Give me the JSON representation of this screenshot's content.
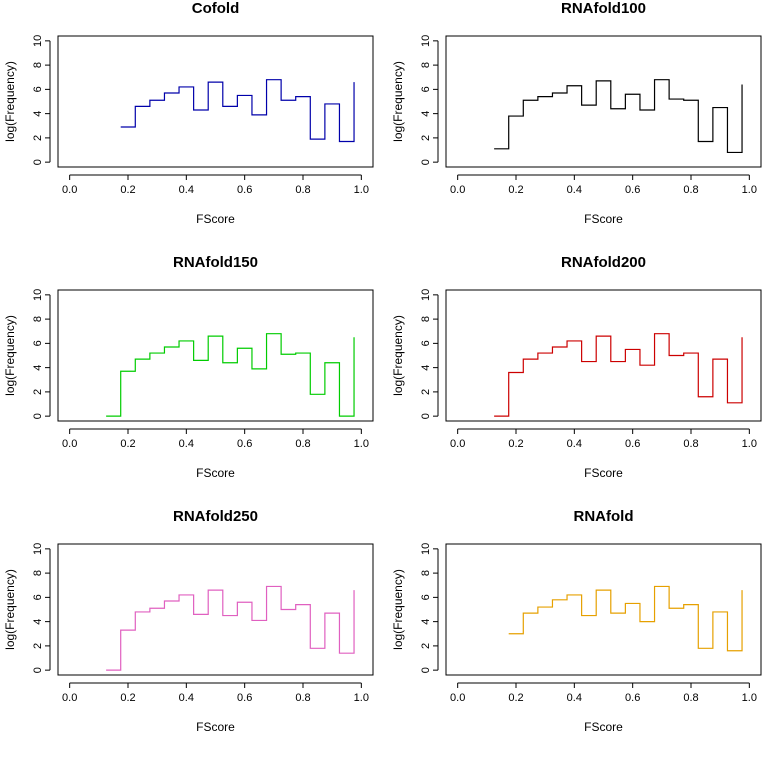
{
  "chart_data": [
    {
      "type": "line",
      "step": true,
      "title": "Cofold",
      "xlabel": "FScore",
      "ylabel": "log(Frequency)",
      "xlim": [
        0.0,
        1.0
      ],
      "ylim": [
        0,
        10
      ],
      "xticks": [
        "0.0",
        "0.2",
        "0.4",
        "0.6",
        "0.8",
        "1.0"
      ],
      "yticks": [
        "0",
        "2",
        "4",
        "6",
        "8",
        "10"
      ],
      "color": "#0000aa",
      "bin_edges": [
        0.175,
        0.225,
        0.275,
        0.325,
        0.375,
        0.425,
        0.475,
        0.525,
        0.575,
        0.625,
        0.675,
        0.725,
        0.775,
        0.825,
        0.875,
        0.925,
        0.975
      ],
      "values": [
        2.9,
        4.6,
        5.1,
        5.7,
        6.2,
        4.3,
        6.6,
        4.6,
        5.5,
        3.9,
        6.8,
        5.1,
        5.4,
        1.9,
        4.8,
        1.7,
        6.6
      ]
    },
    {
      "type": "line",
      "step": true,
      "title": "RNAfold100",
      "xlabel": "FScore",
      "ylabel": "log(Frequency)",
      "xlim": [
        0.0,
        1.0
      ],
      "ylim": [
        0,
        10
      ],
      "xticks": [
        "0.0",
        "0.2",
        "0.4",
        "0.6",
        "0.8",
        "1.0"
      ],
      "yticks": [
        "0",
        "2",
        "4",
        "6",
        "8",
        "10"
      ],
      "color": "#000000",
      "bin_edges": [
        0.125,
        0.175,
        0.225,
        0.275,
        0.325,
        0.375,
        0.425,
        0.475,
        0.525,
        0.575,
        0.625,
        0.675,
        0.725,
        0.775,
        0.825,
        0.875,
        0.925,
        0.975
      ],
      "values": [
        1.1,
        3.8,
        5.1,
        5.4,
        5.7,
        6.3,
        4.7,
        6.7,
        4.4,
        5.6,
        4.3,
        6.8,
        5.2,
        5.1,
        1.7,
        4.5,
        0.8,
        6.4
      ]
    },
    {
      "type": "line",
      "step": true,
      "title": "RNAfold150",
      "xlabel": "FScore",
      "ylabel": "log(Frequency)",
      "xlim": [
        0.0,
        1.0
      ],
      "ylim": [
        0,
        10
      ],
      "xticks": [
        "0.0",
        "0.2",
        "0.4",
        "0.6",
        "0.8",
        "1.0"
      ],
      "yticks": [
        "0",
        "2",
        "4",
        "6",
        "8",
        "10"
      ],
      "color": "#00cc00",
      "bin_edges": [
        0.125,
        0.175,
        0.225,
        0.275,
        0.325,
        0.375,
        0.425,
        0.475,
        0.525,
        0.575,
        0.625,
        0.675,
        0.725,
        0.775,
        0.825,
        0.875,
        0.925,
        0.975
      ],
      "values": [
        0.0,
        3.7,
        4.7,
        5.2,
        5.7,
        6.2,
        4.6,
        6.6,
        4.4,
        5.6,
        3.9,
        6.8,
        5.1,
        5.2,
        1.8,
        4.4,
        0.0,
        6.5
      ]
    },
    {
      "type": "line",
      "step": true,
      "title": "RNAfold200",
      "xlabel": "FScore",
      "ylabel": "log(Frequency)",
      "xlim": [
        0.0,
        1.0
      ],
      "ylim": [
        0,
        10
      ],
      "xticks": [
        "0.0",
        "0.2",
        "0.4",
        "0.6",
        "0.8",
        "1.0"
      ],
      "yticks": [
        "0",
        "2",
        "4",
        "6",
        "8",
        "10"
      ],
      "color": "#cc0000",
      "bin_edges": [
        0.125,
        0.175,
        0.225,
        0.275,
        0.325,
        0.375,
        0.425,
        0.475,
        0.525,
        0.575,
        0.625,
        0.675,
        0.725,
        0.775,
        0.825,
        0.875,
        0.925,
        0.975
      ],
      "values": [
        0.0,
        3.6,
        4.7,
        5.2,
        5.7,
        6.2,
        4.5,
        6.6,
        4.5,
        5.5,
        4.2,
        6.8,
        5.0,
        5.2,
        1.6,
        4.7,
        1.1,
        6.5
      ]
    },
    {
      "type": "line",
      "step": true,
      "title": "RNAfold250",
      "xlabel": "FScore",
      "ylabel": "log(Frequency)",
      "xlim": [
        0.0,
        1.0
      ],
      "ylim": [
        0,
        10
      ],
      "xticks": [
        "0.0",
        "0.2",
        "0.4",
        "0.6",
        "0.8",
        "1.0"
      ],
      "yticks": [
        "0",
        "2",
        "4",
        "6",
        "8",
        "10"
      ],
      "color": "#e060c0",
      "bin_edges": [
        0.125,
        0.175,
        0.225,
        0.275,
        0.325,
        0.375,
        0.425,
        0.475,
        0.525,
        0.575,
        0.625,
        0.675,
        0.725,
        0.775,
        0.825,
        0.875,
        0.925,
        0.975
      ],
      "values": [
        0.0,
        3.3,
        4.8,
        5.1,
        5.7,
        6.2,
        4.6,
        6.6,
        4.5,
        5.6,
        4.1,
        6.9,
        5.0,
        5.4,
        1.8,
        4.7,
        1.4,
        6.6
      ]
    },
    {
      "type": "line",
      "step": true,
      "title": "RNAfold",
      "xlabel": "FScore",
      "ylabel": "log(Frequency)",
      "xlim": [
        0.0,
        1.0
      ],
      "ylim": [
        0,
        10
      ],
      "xticks": [
        "0.0",
        "0.2",
        "0.4",
        "0.6",
        "0.8",
        "1.0"
      ],
      "yticks": [
        "0",
        "2",
        "4",
        "6",
        "8",
        "10"
      ],
      "color": "#e6a000",
      "bin_edges": [
        0.175,
        0.225,
        0.275,
        0.325,
        0.375,
        0.425,
        0.475,
        0.525,
        0.575,
        0.625,
        0.675,
        0.725,
        0.775,
        0.825,
        0.875,
        0.925,
        0.975
      ],
      "values": [
        3.0,
        4.7,
        5.2,
        5.8,
        6.2,
        4.5,
        6.6,
        4.7,
        5.5,
        4.0,
        6.9,
        5.1,
        5.4,
        1.8,
        4.8,
        1.6,
        6.6
      ]
    }
  ]
}
